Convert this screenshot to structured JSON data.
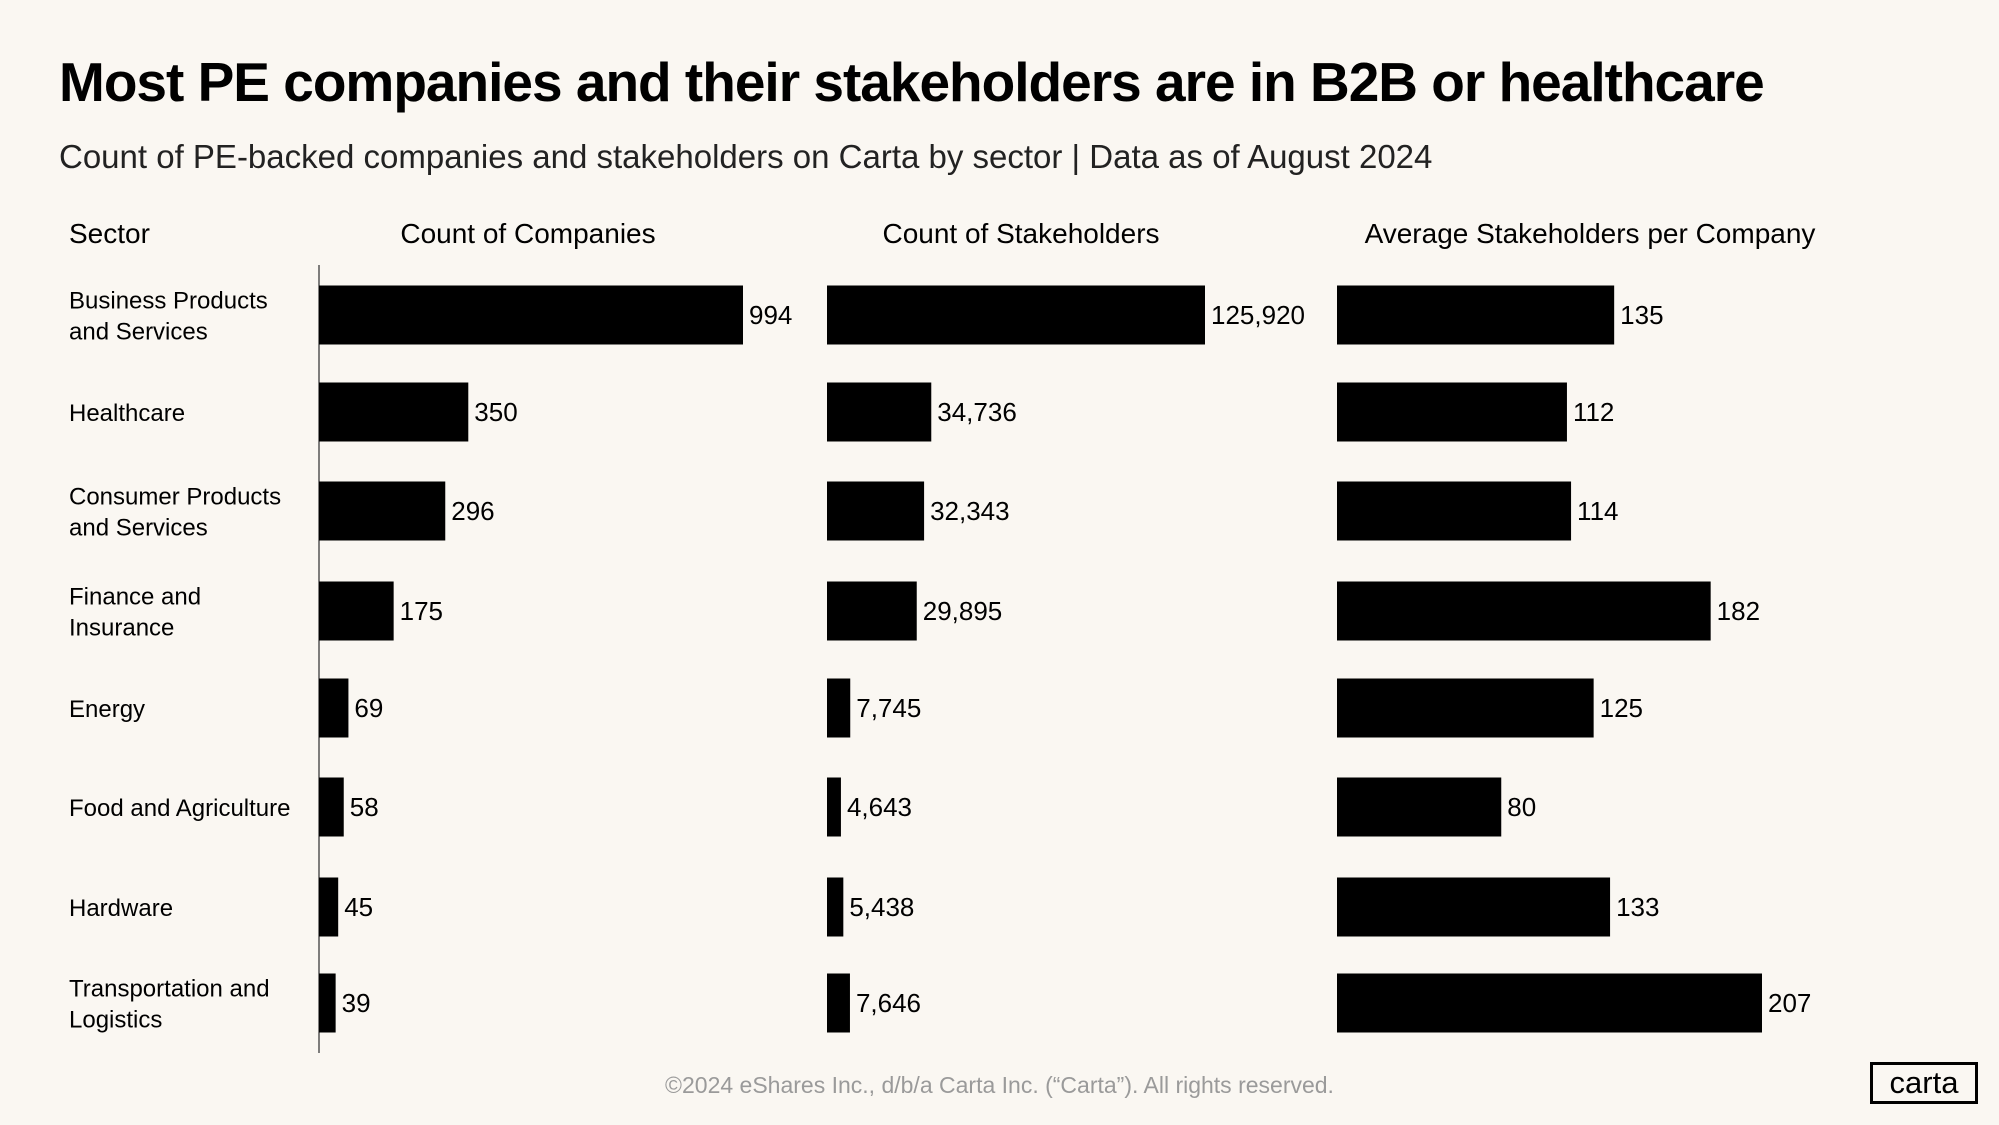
{
  "title": "Most PE companies and their stakeholders are in B2B or healthcare",
  "subtitle": "Count of PE-backed companies and stakeholders  on Carta by sector | Data as of August 2024",
  "footer": "©2024 eShares Inc., d/b/a Carta Inc. (“Carta”). All rights reserved.",
  "logo": "carta",
  "chart_data": {
    "type": "bar",
    "orientation": "horizontal",
    "category_header": "Sector",
    "categories": [
      [
        "Business Products",
        "and Services"
      ],
      [
        "Healthcare"
      ],
      [
        "Consumer Products",
        "and Services"
      ],
      [
        "Finance and",
        "Insurance"
      ],
      [
        "Energy"
      ],
      [
        "Food and Agriculture"
      ],
      [
        "Hardware"
      ],
      [
        "Transportation and",
        "Logistics"
      ]
    ],
    "bar_color": "#000000",
    "grid": false,
    "series": [
      {
        "name": "Count of Companies",
        "values": [
          994,
          350,
          296,
          175,
          69,
          58,
          45,
          39
        ],
        "labels": [
          "994",
          "350",
          "296",
          "175",
          "69",
          "58",
          "45",
          "39"
        ]
      },
      {
        "name": "Count of Stakeholders",
        "values": [
          125920,
          34736,
          32343,
          29895,
          7745,
          4643,
          5438,
          7646
        ],
        "labels": [
          "125,920",
          "34,736",
          "32,343",
          "29,895",
          "7,745",
          "4,643",
          "5,438",
          "7,646"
        ]
      },
      {
        "name": "Average Stakeholders per Company",
        "values": [
          135,
          112,
          114,
          182,
          125,
          80,
          133,
          207
        ],
        "labels": [
          "135",
          "112",
          "114",
          "182",
          "125",
          "80",
          "133",
          "207"
        ]
      }
    ]
  }
}
